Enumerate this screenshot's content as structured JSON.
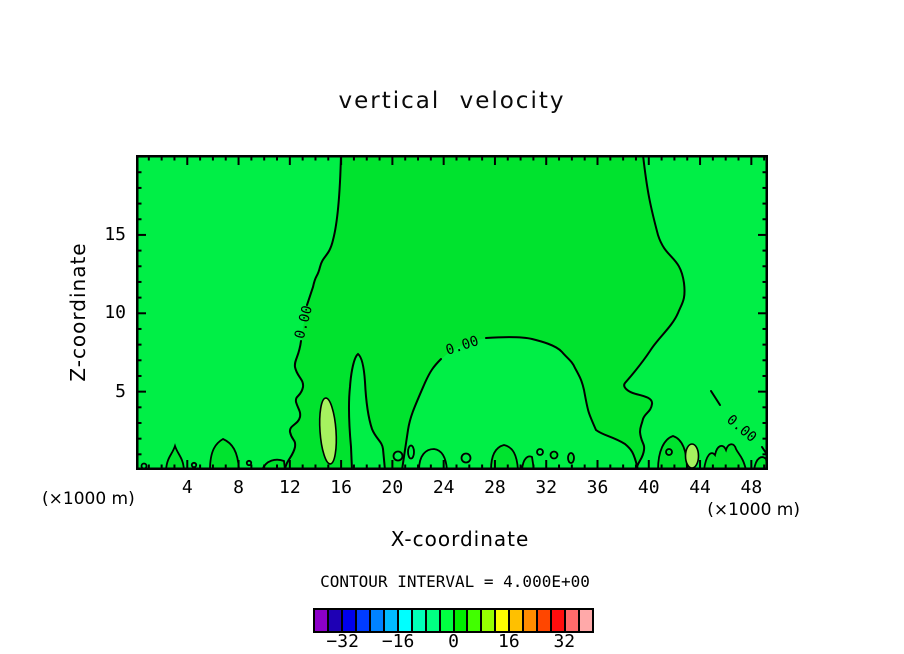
{
  "title": "vertical velocity",
  "axes": {
    "x": {
      "label": "X-coordinate",
      "unit_note": "(×1000 m)",
      "ticks": [
        4,
        8,
        12,
        16,
        20,
        24,
        28,
        32,
        36,
        40,
        44,
        48
      ],
      "range": [
        0,
        49.3
      ],
      "minor_step": 1,
      "major_step": 4
    },
    "y": {
      "label": "Z-coordinate",
      "unit_note": "(×1000 m)",
      "ticks": [
        5,
        10,
        15
      ],
      "range": [
        0,
        20.1
      ],
      "minor_step": 1,
      "major_step": 5
    }
  },
  "contour": {
    "zero_label": "0.00",
    "interval_text": "CONTOUR INTERVAL = 4.000E+00",
    "interval_value": 4.0
  },
  "colorbar": {
    "cells": [
      "#8c00c8",
      "#1e00b4",
      "#0000eb",
      "#003cff",
      "#0082ff",
      "#00baff",
      "#00ffff",
      "#00ffb9",
      "#00ff82",
      "#00ff41",
      "#00ee00",
      "#41ff00",
      "#97ff00",
      "#fdfd00",
      "#ffc000",
      "#ff8c00",
      "#ff4600",
      "#ff0d0d",
      "#ff6b6b",
      "#ffa9a9"
    ],
    "levels": [
      -40,
      -36,
      -32,
      -28,
      -24,
      -20,
      -16,
      -12,
      -8,
      -4,
      0,
      4,
      8,
      12,
      16,
      20,
      24,
      28,
      32,
      36,
      40
    ],
    "tick_labels": [
      "−32",
      "−16",
      "0",
      "16",
      "32"
    ],
    "tick_boundaries": [
      2,
      6,
      10,
      14,
      18
    ]
  },
  "field_colors": {
    "negative_band": "#00ef46",
    "positive_band": "#00e32e",
    "high_cell": "#a6f25f",
    "contour_line": "#000000"
  },
  "chart_data": {
    "type": "heatmap",
    "subtype": "filled-contour",
    "title": "vertical velocity",
    "xlabel": "X-coordinate",
    "ylabel": "Z-coordinate",
    "x_unit": "×1000 m",
    "y_unit": "×1000 m",
    "xlim": [
      0,
      49.3
    ],
    "ylim": [
      0,
      20.1
    ],
    "x_ticks": [
      4,
      8,
      12,
      16,
      20,
      24,
      28,
      32,
      36,
      40,
      44,
      48
    ],
    "y_ticks": [
      5,
      10,
      15
    ],
    "contour_interval": 4.0,
    "contour_labels": [
      {
        "value": "0.00",
        "x": 13.0,
        "z": 9.4
      },
      {
        "value": "0.00",
        "x": 25.4,
        "z": 8.0
      },
      {
        "value": "0.00",
        "x": 47.5,
        "z": 2.4
      }
    ],
    "zero_contour_top_intersections_x": [
      16.0,
      39.6
    ],
    "legend_position": "bottom",
    "grid": false,
    "notes_visible_values": {
      "field_near_zero": true,
      "colorbar_range": [
        -40,
        40
      ],
      "colorbar_labeled_values": [
        -32,
        -16,
        0,
        16,
        32
      ]
    }
  }
}
